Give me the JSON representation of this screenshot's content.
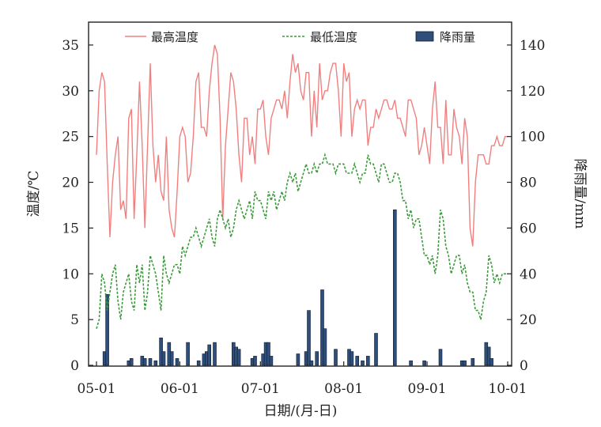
{
  "chart_data": {
    "type": "line",
    "legend_position": "top",
    "title": "",
    "xlabel": "日期/(月-日)",
    "ylabel_left": "温度/℃",
    "ylabel_right": "降雨量/mm",
    "x_ticks": [
      "05-01",
      "06-01",
      "07-01",
      "08-01",
      "09-01",
      "10-01"
    ],
    "y_left_ticks": [
      0,
      5,
      10,
      15,
      20,
      25,
      30,
      35
    ],
    "y_right_ticks": [
      0,
      20,
      40,
      60,
      80,
      100,
      120,
      140
    ],
    "y_left_range": [
      0,
      37.5
    ],
    "y_right_range": [
      0,
      150
    ],
    "x_range_days": [
      0,
      153
    ],
    "colors": {
      "max_temp": "#f08080",
      "min_temp": "#3a9a3a",
      "rain_fill": "#2f4f7a",
      "rain_edge": "#0d1d33"
    },
    "legend": {
      "max_temp": "最高温度",
      "min_temp": "最低温度",
      "rain": "降雨量"
    },
    "series": [
      {
        "name": "最高温度",
        "axis": "left",
        "style": "line",
        "values": [
          23,
          30,
          32,
          31,
          22,
          14,
          20,
          23,
          25,
          17,
          18,
          16,
          27,
          28,
          16,
          23,
          31,
          24,
          15,
          24,
          33,
          24,
          20,
          23,
          19,
          18,
          25,
          17,
          15,
          14,
          19,
          25,
          26,
          25,
          20,
          21,
          25,
          31,
          32,
          26,
          26,
          25,
          30,
          33,
          35,
          34,
          27,
          16,
          24,
          28,
          32,
          31,
          28,
          23,
          20,
          27,
          27,
          23,
          25,
          22,
          28,
          28,
          29,
          25,
          23,
          27,
          28,
          29,
          29,
          28,
          30,
          27,
          31,
          34,
          32,
          33,
          30,
          29,
          32,
          32,
          25,
          30,
          26,
          33,
          29,
          30,
          30,
          32,
          33,
          33,
          30,
          25,
          33,
          31,
          32,
          25,
          28,
          29,
          28,
          29,
          29,
          24,
          26,
          26,
          28,
          27,
          28,
          29,
          29,
          28,
          28,
          29,
          27,
          27,
          26,
          25,
          29,
          29,
          28,
          27,
          23,
          24,
          26,
          24,
          22,
          28,
          31,
          26,
          26,
          22,
          29,
          23,
          23,
          28,
          26,
          25,
          22,
          27,
          25,
          15,
          13,
          20,
          23,
          23,
          23,
          22,
          22,
          24,
          24,
          25,
          24,
          24,
          25,
          25
        ]
      },
      {
        "name": "最低温度",
        "axis": "left",
        "style": "dashed",
        "values": [
          4,
          5,
          10,
          9,
          6,
          8,
          10,
          11,
          7,
          5,
          8,
          9,
          10,
          7,
          6,
          11,
          9,
          11,
          6,
          8,
          12,
          11,
          10,
          8,
          6,
          12,
          10,
          9,
          10,
          11,
          11,
          10,
          13,
          12,
          13,
          14,
          14,
          15,
          14,
          13,
          14,
          15,
          16,
          14,
          13,
          16,
          17,
          16,
          15,
          16,
          14,
          15,
          17,
          18,
          17,
          16,
          17,
          18,
          16,
          19,
          18,
          18,
          17,
          16,
          19,
          18,
          19,
          17,
          18,
          19,
          18,
          20,
          21,
          20,
          21,
          19,
          20,
          21,
          22,
          21,
          21,
          22,
          21,
          22,
          22,
          23,
          22,
          22,
          22,
          21,
          22,
          22,
          22,
          21,
          21,
          21,
          22,
          21,
          20,
          21,
          21,
          23,
          22,
          22,
          21,
          20,
          22,
          22,
          21,
          20,
          20,
          21,
          21,
          20,
          18,
          18,
          16,
          17,
          15,
          16,
          16,
          14,
          12,
          12,
          11,
          12,
          10,
          12,
          17,
          16,
          13,
          12,
          10,
          11,
          12,
          12,
          10,
          11,
          9,
          8,
          8,
          6,
          6,
          5,
          7,
          8,
          12,
          11,
          9,
          10,
          9,
          10,
          10,
          10
        ]
      },
      {
        "name": "降雨量",
        "axis": "right",
        "style": "bar",
        "points": [
          [
            3,
            6
          ],
          [
            4,
            31
          ],
          [
            12,
            2
          ],
          [
            13,
            3
          ],
          [
            17,
            4
          ],
          [
            18,
            3
          ],
          [
            20,
            3
          ],
          [
            22,
            2
          ],
          [
            24,
            12
          ],
          [
            25,
            6
          ],
          [
            27,
            10
          ],
          [
            28,
            6
          ],
          [
            30,
            3
          ],
          [
            34,
            10
          ],
          [
            38,
            2
          ],
          [
            40,
            5
          ],
          [
            41,
            6
          ],
          [
            42,
            9
          ],
          [
            44,
            10
          ],
          [
            51,
            10
          ],
          [
            52,
            8
          ],
          [
            53,
            7
          ],
          [
            58,
            3
          ],
          [
            59,
            4
          ],
          [
            62,
            5
          ],
          [
            63,
            10
          ],
          [
            64,
            10
          ],
          [
            65,
            4
          ],
          [
            75,
            5
          ],
          [
            78,
            6
          ],
          [
            79,
            24
          ],
          [
            80,
            2
          ],
          [
            82,
            6
          ],
          [
            84,
            33
          ],
          [
            85,
            16
          ],
          [
            89,
            7
          ],
          [
            94,
            7
          ],
          [
            95,
            6
          ],
          [
            97,
            4
          ],
          [
            99,
            2
          ],
          [
            101,
            4
          ],
          [
            104,
            14
          ],
          [
            111,
            68
          ],
          [
            117,
            2
          ],
          [
            122,
            2
          ],
          [
            128,
            7
          ],
          [
            136,
            2
          ],
          [
            137,
            2
          ],
          [
            140,
            3
          ],
          [
            145,
            10
          ],
          [
            146,
            8
          ],
          [
            147,
            3
          ]
        ]
      }
    ]
  }
}
